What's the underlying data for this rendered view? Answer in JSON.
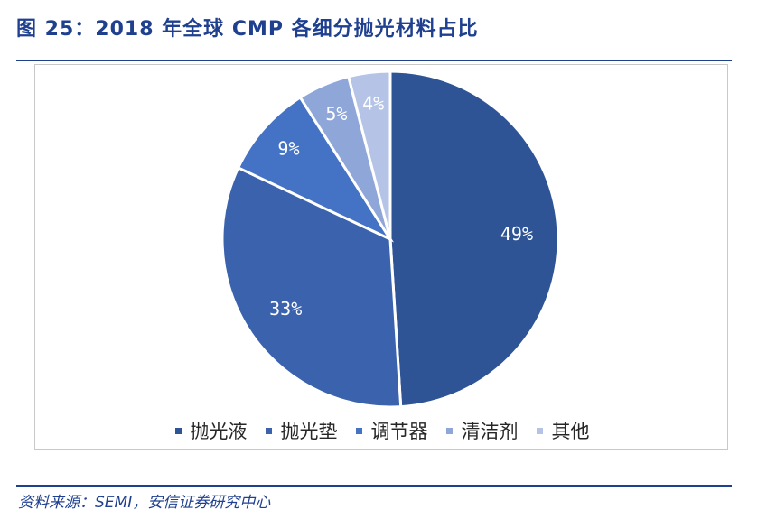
{
  "figure_title": "图 25：2018 年全球 CMP 各细分抛光材料占比",
  "source": "资料来源：SEMI，安信证券研究中心",
  "chart_data": {
    "type": "pie",
    "title": "2018 年全球 CMP 各细分抛光材料占比",
    "unit": "%",
    "legend_position": "bottom",
    "slices": [
      {
        "label": "抛光液",
        "value": 49,
        "display": "49%",
        "color": "#2f5496"
      },
      {
        "label": "抛光垫",
        "value": 33,
        "display": "33%",
        "color": "#3a62ad"
      },
      {
        "label": "调节器",
        "value": 9,
        "display": "9%",
        "color": "#4472c4"
      },
      {
        "label": "清洁剂",
        "value": 5,
        "display": "5%",
        "color": "#8ea6d8"
      },
      {
        "label": "其他",
        "value": 4,
        "display": "4%",
        "color": "#b4c3e6"
      }
    ]
  }
}
